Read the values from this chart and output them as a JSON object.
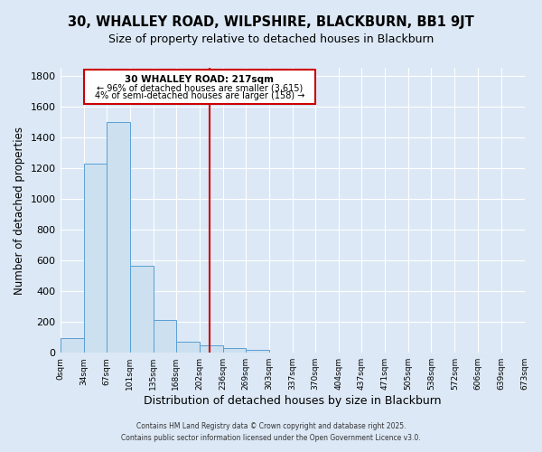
{
  "title": "30, WHALLEY ROAD, WILPSHIRE, BLACKBURN, BB1 9JT",
  "subtitle": "Size of property relative to detached houses in Blackburn",
  "xlabel": "Distribution of detached houses by size in Blackburn",
  "ylabel": "Number of detached properties",
  "bin_edges": [
    0,
    34,
    67,
    101,
    135,
    168,
    202,
    236,
    269,
    303,
    337,
    370,
    404,
    437,
    471,
    505,
    538,
    572,
    606,
    639,
    673
  ],
  "bin_counts": [
    95,
    1230,
    1500,
    565,
    210,
    70,
    50,
    30,
    20,
    0,
    0,
    0,
    0,
    0,
    0,
    0,
    0,
    0,
    0,
    0
  ],
  "bar_color": "#cce0f0",
  "bar_edge_color": "#5a9fd4",
  "property_line_x": 217,
  "property_line_color": "#cc0000",
  "ylim": [
    0,
    1850
  ],
  "yticks": [
    0,
    200,
    400,
    600,
    800,
    1000,
    1200,
    1400,
    1600,
    1800
  ],
  "background_color": "#dce8f5",
  "grid_color": "#ffffff",
  "annotation_title": "30 WHALLEY ROAD: 217sqm",
  "annotation_line1": "← 96% of detached houses are smaller (3,615)",
  "annotation_line2": "4% of semi-detached houses are larger (158) →",
  "annotation_box_facecolor": "#ffffff",
  "annotation_box_edgecolor": "#cc0000",
  "footer_line1": "Contains HM Land Registry data © Crown copyright and database right 2025.",
  "footer_line2": "Contains public sector information licensed under the Open Government Licence v3.0.",
  "tick_labels": [
    "0sqm",
    "34sqm",
    "67sqm",
    "101sqm",
    "135sqm",
    "168sqm",
    "202sqm",
    "236sqm",
    "269sqm",
    "303sqm",
    "337sqm",
    "370sqm",
    "404sqm",
    "437sqm",
    "471sqm",
    "505sqm",
    "538sqm",
    "572sqm",
    "606sqm",
    "639sqm",
    "673sqm"
  ]
}
